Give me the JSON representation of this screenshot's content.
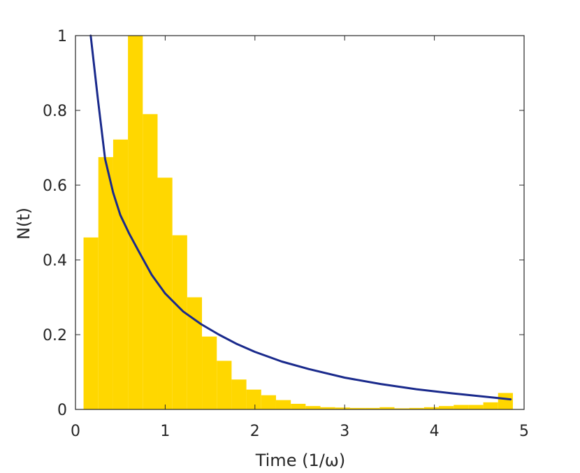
{
  "chart_data": {
    "type": "bar",
    "xlabel": "Time (1/ω)",
    "ylabel": "N(t)",
    "xlim": [
      0,
      5
    ],
    "ylim": [
      0,
      1
    ],
    "xticks": [
      "0",
      "1",
      "2",
      "3",
      "4",
      "5"
    ],
    "yticks": [
      "0",
      "0.2",
      "0.4",
      "0.6",
      "0.8",
      "1"
    ],
    "grid": false,
    "legend": "none",
    "colors": {
      "bars": "#FFD700",
      "curve": "#1A2A8C",
      "axes": "#262626"
    },
    "series": [
      {
        "kind": "histogram",
        "bin_width": 0.165,
        "bin_starts": [
          0.09,
          0.255,
          0.42,
          0.585,
          0.75,
          0.915,
          1.08,
          1.245,
          1.41,
          1.575,
          1.74,
          1.905,
          2.07,
          2.235,
          2.4,
          2.565,
          2.73,
          2.895,
          3.06,
          3.225,
          3.39,
          3.555,
          3.72,
          3.885,
          4.05,
          4.215,
          4.38,
          4.545,
          4.71
        ],
        "values": [
          0.46,
          0.675,
          0.722,
          1.0,
          0.79,
          0.62,
          0.466,
          0.3,
          0.195,
          0.13,
          0.08,
          0.053,
          0.038,
          0.025,
          0.015,
          0.009,
          0.006,
          0.005,
          0.004,
          0.004,
          0.006,
          0.003,
          0.004,
          0.006,
          0.009,
          0.012,
          0.012,
          0.019,
          0.044
        ]
      },
      {
        "kind": "line",
        "x": [
          0.17,
          0.25,
          0.33,
          0.42,
          0.5,
          0.6,
          0.7,
          0.85,
          1.0,
          1.2,
          1.4,
          1.6,
          1.8,
          2.0,
          2.3,
          2.6,
          3.0,
          3.4,
          3.8,
          4.2,
          4.6,
          4.85
        ],
        "y": [
          1.0,
          0.83,
          0.67,
          0.58,
          0.52,
          0.47,
          0.425,
          0.36,
          0.31,
          0.262,
          0.228,
          0.2,
          0.175,
          0.154,
          0.128,
          0.108,
          0.085,
          0.068,
          0.054,
          0.043,
          0.033,
          0.027
        ]
      }
    ]
  }
}
